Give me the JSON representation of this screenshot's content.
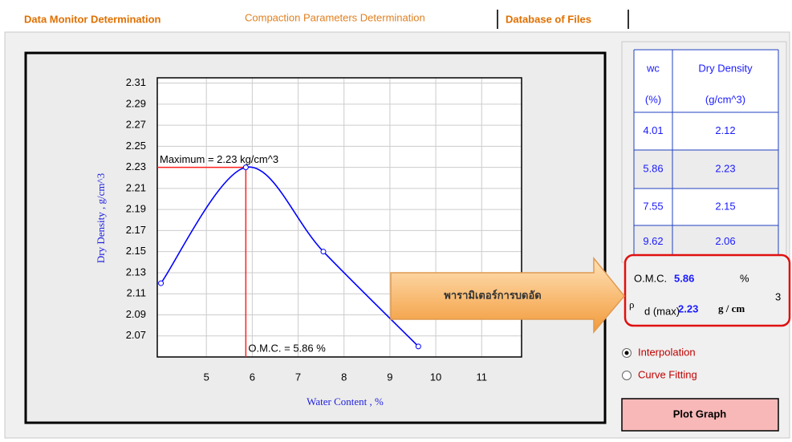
{
  "tabs": [
    "Data Monitor Determination",
    "Compaction Parameters Determination",
    "Database of Files"
  ],
  "chart_data": {
    "type": "line",
    "x": [
      4.01,
      5.86,
      7.55,
      9.62
    ],
    "values": [
      2.12,
      2.23,
      2.15,
      2.06
    ],
    "color": "#0000ff",
    "xlabel": "Water Content , %",
    "ylabel": "Dry Density , g/cm^3",
    "xlim": [
      3.93,
      11.87
    ],
    "ylim": [
      2.05,
      2.315
    ],
    "xticks": [
      5,
      6,
      7,
      8,
      9,
      10,
      11
    ],
    "yticks": [
      2.07,
      2.09,
      2.11,
      2.13,
      2.15,
      2.17,
      2.19,
      2.21,
      2.23,
      2.25,
      2.27,
      2.29,
      2.31
    ],
    "grid": true,
    "annotations": [
      "Maximum = 2.23 kg/cm^3",
      "O.M.C. = 5.86 %"
    ]
  },
  "table": {
    "header": [
      [
        "wc",
        "(%)"
      ],
      [
        "Dry Density",
        "(g/cm^3)"
      ]
    ],
    "rows": [
      [
        "4.01",
        "2.12"
      ],
      [
        "5.86",
        "2.23"
      ],
      [
        "7.55",
        "2.15"
      ],
      [
        "9.62",
        "2.06"
      ]
    ]
  },
  "results": {
    "omc_label": "O.M.C.",
    "omc_value": "5.86",
    "omc_unit": "%",
    "rho": "ρ",
    "rho_sub": "d (max)",
    "rho_value": "2.23",
    "rho_unit": "g / cm",
    "rho_unit_sup": "3"
  },
  "options": [
    "Interpolation",
    "Curve Fitting"
  ],
  "button": "Plot Graph",
  "callout": "พารามิเตอร์การบดอัด"
}
